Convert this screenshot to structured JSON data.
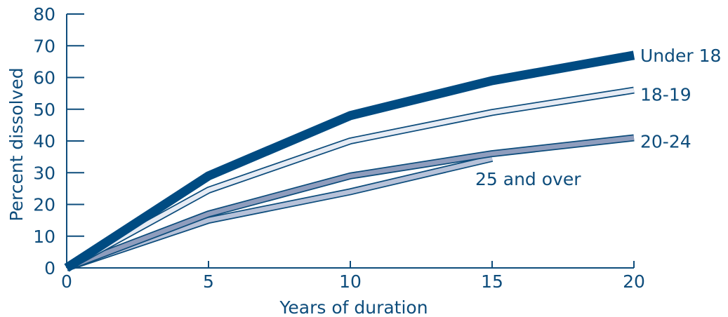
{
  "chart_data": {
    "type": "line",
    "xlabel": "Years of duration",
    "ylabel": "Percent dissolved",
    "xlim": [
      0,
      20
    ],
    "ylim": [
      0,
      80
    ],
    "x_ticks": [
      "0",
      "5",
      "10",
      "15",
      "20"
    ],
    "y_ticks": [
      "0",
      "10",
      "20",
      "30",
      "40",
      "50",
      "60",
      "70",
      "80"
    ],
    "grid": false,
    "legend": "direct labels at line ends",
    "series": [
      {
        "name": "Under 18",
        "x": [
          0,
          5,
          10,
          15,
          20
        ],
        "y": [
          0,
          29,
          48,
          59,
          67
        ],
        "color": "#004b82",
        "style": "thick-solid"
      },
      {
        "name": "18-19",
        "x": [
          0,
          5,
          10,
          15,
          20
        ],
        "y": [
          0,
          24.5,
          40,
          49,
          56
        ],
        "color": "#e6ebf4",
        "style": "light-outlined"
      },
      {
        "name": "20-24",
        "x": [
          0,
          5,
          10,
          15,
          20
        ],
        "y": [
          0,
          17,
          29,
          36,
          41
        ],
        "color": "#8f9dbd",
        "style": "medium-outlined"
      },
      {
        "name": "25 and over",
        "x": [
          0,
          5,
          10,
          15
        ],
        "y": [
          0,
          15,
          24,
          34.5
        ],
        "color": "#b7c2d9",
        "style": "medium-outlined"
      }
    ]
  }
}
